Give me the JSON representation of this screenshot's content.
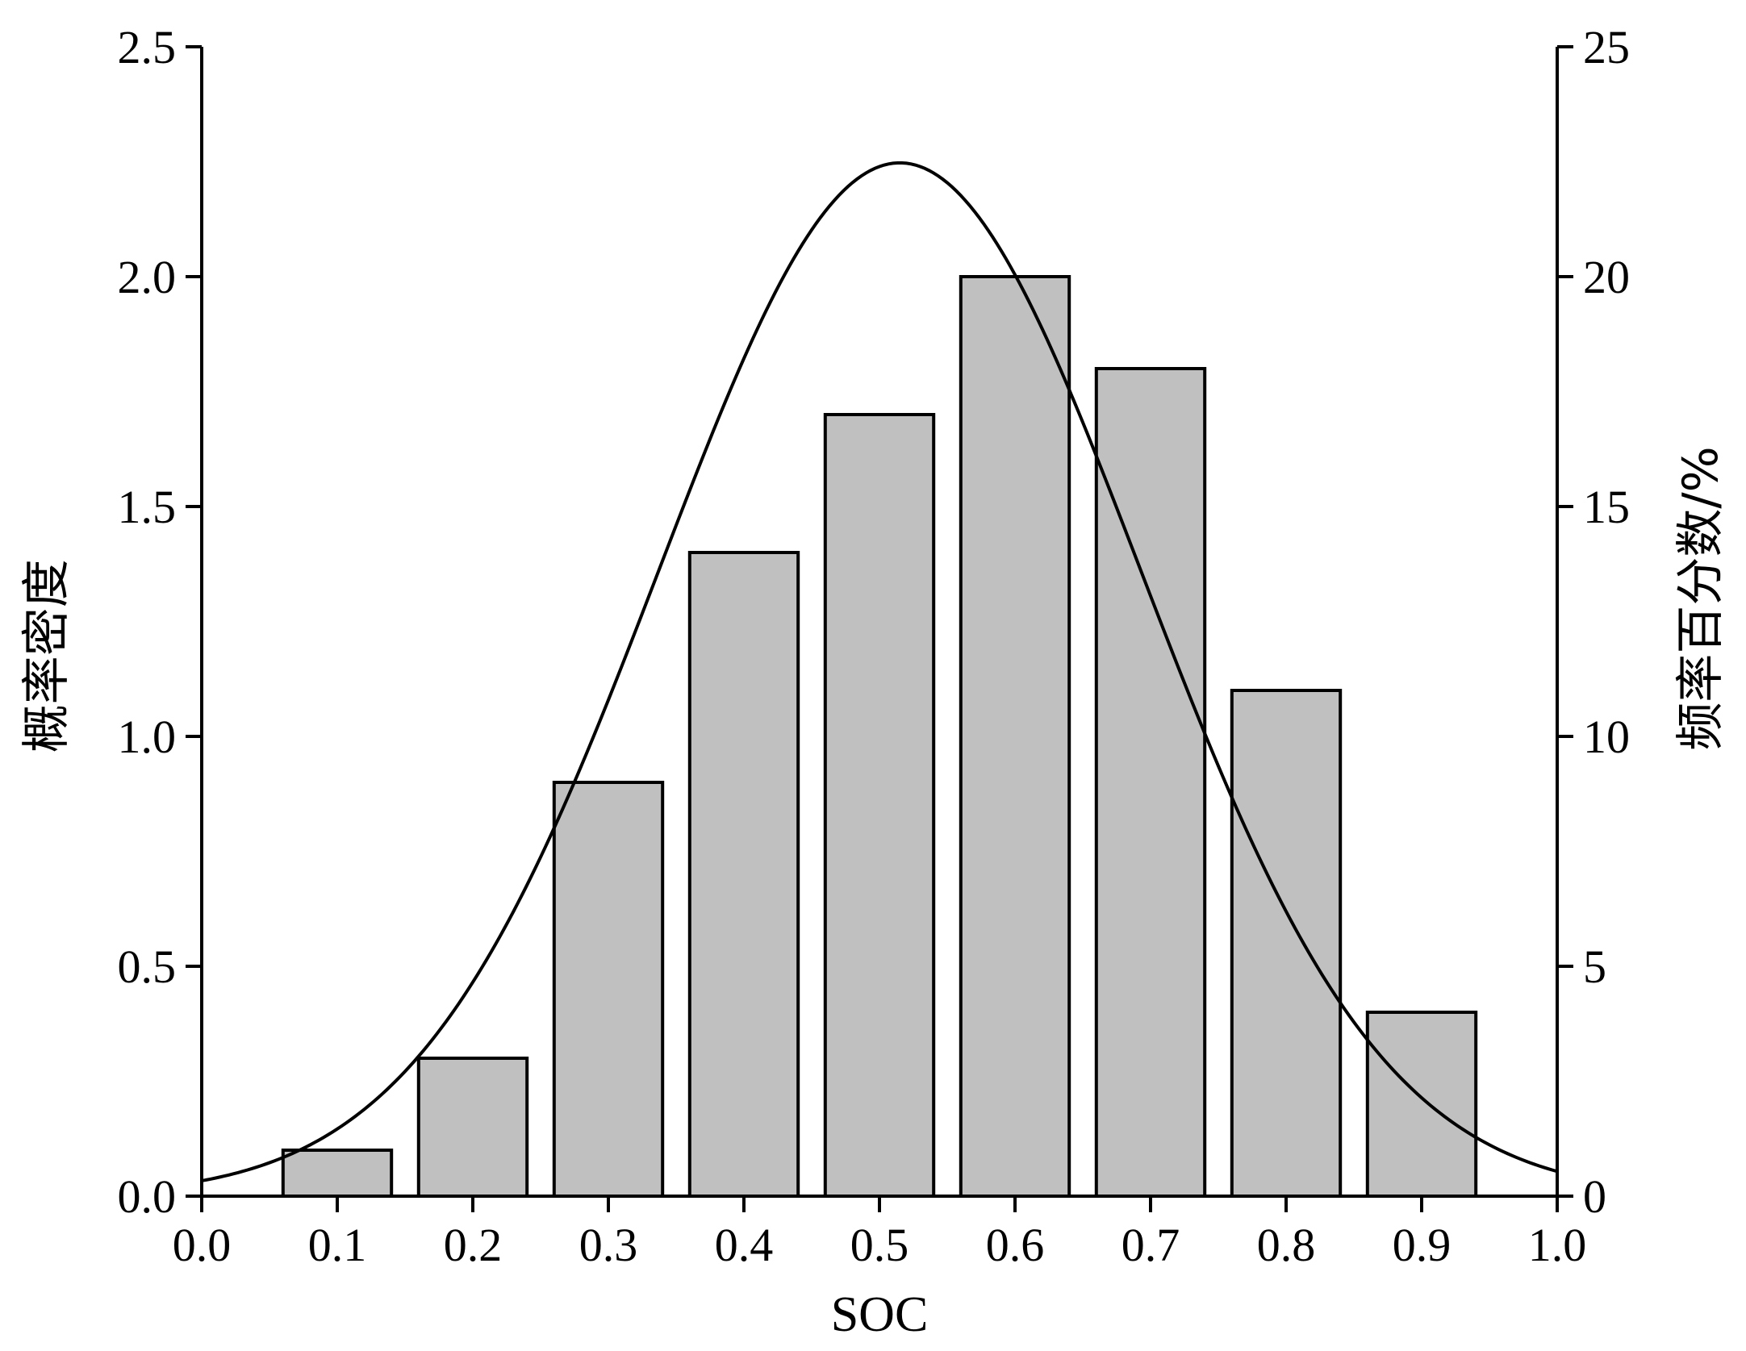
{
  "chart_data": {
    "type": "bar",
    "title": "",
    "xlabel": "SOC",
    "ylabel_left": "概率密度",
    "ylabel_right": "频率百分数/%",
    "xlim": [
      0.0,
      1.0
    ],
    "ylim_left": [
      0.0,
      2.5
    ],
    "ylim_right": [
      0,
      25
    ],
    "x_ticks": [
      "0.0",
      "0.1",
      "0.2",
      "0.3",
      "0.4",
      "0.5",
      "0.6",
      "0.7",
      "0.8",
      "0.9",
      "1.0"
    ],
    "y_left_ticks": [
      "0.0",
      "0.5",
      "1.0",
      "1.5",
      "2.0",
      "2.5"
    ],
    "y_right_ticks": [
      "0",
      "5",
      "10",
      "15",
      "20",
      "25"
    ],
    "bar_width": 0.08,
    "series": [
      {
        "type": "bar",
        "axis": "right",
        "x": [
          0.1,
          0.2,
          0.3,
          0.4,
          0.5,
          0.6,
          0.7,
          0.8,
          0.9
        ],
        "values": [
          1,
          3,
          9,
          14,
          17,
          20,
          18,
          11,
          4
        ],
        "color": "#c0c0c0"
      },
      {
        "type": "line",
        "axis": "left",
        "distribution": "normal",
        "mean": 0.515,
        "sd": 0.1775,
        "x_range": [
          0.0,
          1.0
        ],
        "color": "#000000"
      }
    ],
    "grid": false,
    "legend": "none"
  }
}
